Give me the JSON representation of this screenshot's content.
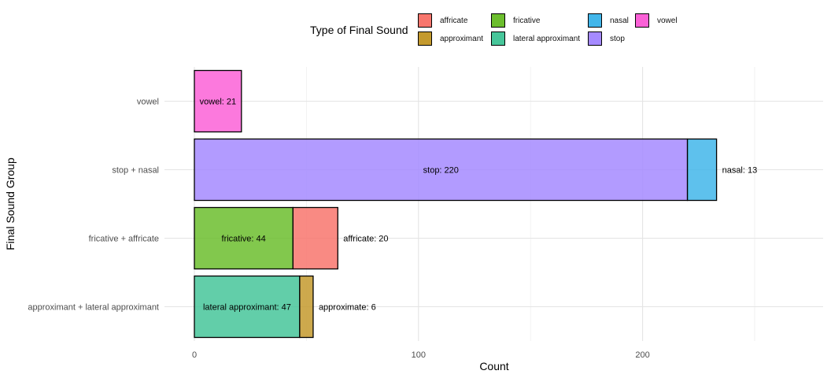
{
  "chart_data": {
    "type": "bar",
    "orientation": "horizontal",
    "stacked": true,
    "xlabel": "Count",
    "ylabel": "Final Sound Group",
    "xlim": [
      0,
      280
    ],
    "x_ticks": [
      0,
      100,
      200
    ],
    "grid": true,
    "legend": {
      "title": "Type of Final Sound",
      "position": "top",
      "entries": [
        "affricate",
        "approximant",
        "fricative",
        "lateral approximant",
        "nasal",
        "stop",
        "vowel"
      ]
    },
    "colors": {
      "affricate": "#F8766D",
      "approximant": "#C49A2E",
      "fricative": "#6CBE2E",
      "lateral approximant": "#47C69A",
      "nasal": "#42B6EA",
      "stop": "#A58AFF",
      "vowel": "#FB61D7"
    },
    "categories": [
      "approximant + lateral approximant",
      "fricative + affricate",
      "stop + nasal",
      "vowel"
    ],
    "bars": [
      {
        "category": "approximant + lateral approximant",
        "segments": [
          {
            "type": "lateral approximant",
            "value": 47,
            "label": "lateral approximant: 47",
            "label_position": "inside"
          },
          {
            "type": "approximant",
            "value": 6,
            "label": "approximate: 6",
            "label_position": "outside"
          }
        ]
      },
      {
        "category": "fricative + affricate",
        "segments": [
          {
            "type": "fricative",
            "value": 44,
            "label": "fricative: 44",
            "label_position": "inside"
          },
          {
            "type": "affricate",
            "value": 20,
            "label": "affricate: 20",
            "label_position": "outside"
          }
        ]
      },
      {
        "category": "stop + nasal",
        "segments": [
          {
            "type": "stop",
            "value": 220,
            "label": "stop: 220",
            "label_position": "inside"
          },
          {
            "type": "nasal",
            "value": 13,
            "label": "nasal: 13",
            "label_position": "outside"
          }
        ]
      },
      {
        "category": "vowel",
        "segments": [
          {
            "type": "vowel",
            "value": 21,
            "label": "vowel: 21",
            "label_position": "inside"
          }
        ]
      }
    ]
  }
}
